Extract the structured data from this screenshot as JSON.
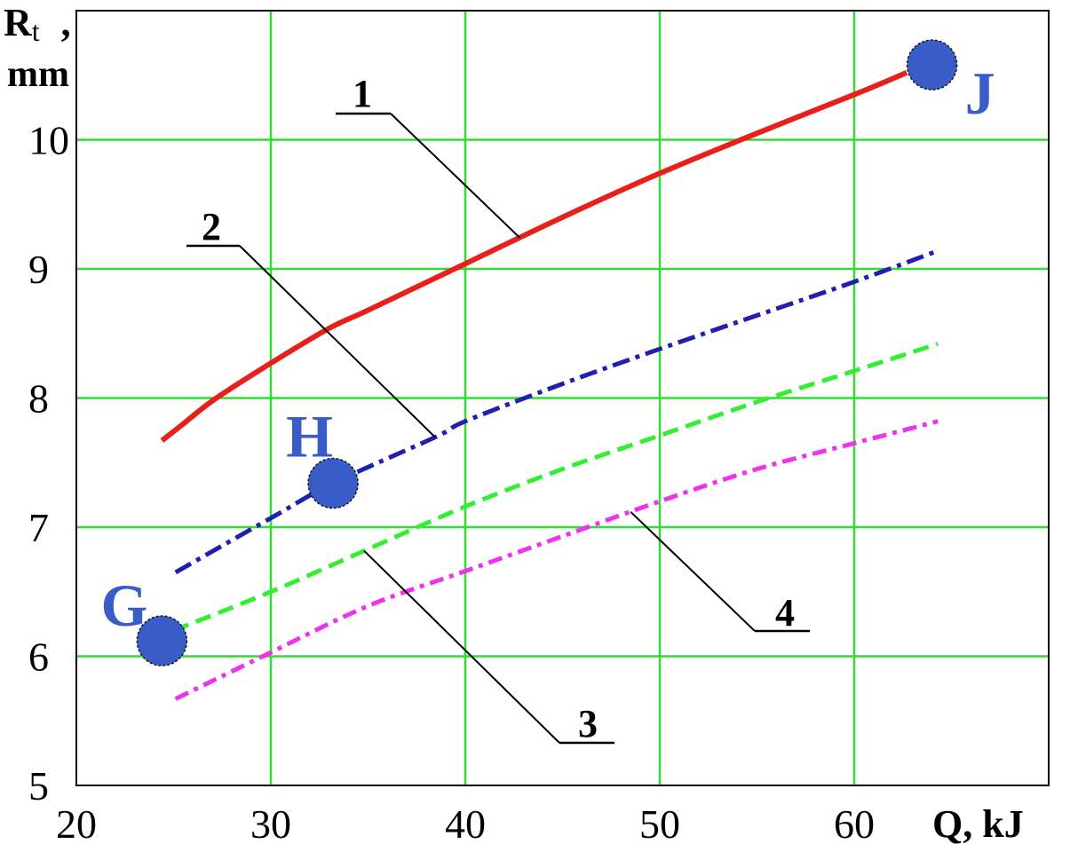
{
  "chart_data": {
    "type": "line",
    "xlabel": "Q, kJ",
    "ylabel": {
      "symbol": "R",
      "subscript": "t",
      "separator": ",",
      "unit": "mm"
    },
    "xlim": [
      20,
      70
    ],
    "ylim": [
      5,
      11
    ],
    "xticks": [
      20,
      30,
      40,
      50,
      60
    ],
    "yticks": [
      5,
      6,
      7,
      8,
      9,
      10
    ],
    "grid": true,
    "grid_color": "#35db35",
    "series": [
      {
        "name": "1",
        "color": "#e8201b",
        "x": [
          24.4,
          25.5,
          27.1,
          30,
          33,
          35,
          40,
          45,
          50,
          55,
          60,
          62.7
        ],
        "y": [
          7.67,
          7.8,
          7.99,
          8.27,
          8.54,
          8.68,
          9.04,
          9.4,
          9.74,
          10.05,
          10.35,
          10.52
        ]
      },
      {
        "name": "2",
        "color": "#1f1fb0",
        "x": [
          25.1,
          30,
          33.2,
          38.5,
          40,
          45,
          50,
          55,
          60,
          64.3
        ],
        "y": [
          6.65,
          7.07,
          7.34,
          7.7,
          7.82,
          8.11,
          8.38,
          8.64,
          8.9,
          9.14
        ]
      },
      {
        "name": "3",
        "color": "#33ee33",
        "x": [
          25,
          30,
          35,
          40,
          45,
          50,
          55,
          60,
          64.3
        ],
        "y": [
          6.2,
          6.5,
          6.83,
          7.16,
          7.45,
          7.71,
          7.97,
          8.21,
          8.42
        ]
      },
      {
        "name": "4",
        "color": "#ee33ee",
        "x": [
          25.1,
          30,
          35,
          40,
          45,
          50,
          55,
          60,
          64.3
        ],
        "y": [
          5.67,
          6.03,
          6.39,
          6.66,
          6.93,
          7.2,
          7.45,
          7.65,
          7.82
        ]
      }
    ],
    "points": [
      {
        "label": "G",
        "x": 24.4,
        "y": 6.12
      },
      {
        "label": "H",
        "x": 33.2,
        "y": 7.34
      },
      {
        "label": "J",
        "x": 64.0,
        "y": 10.58
      }
    ],
    "point_color": "#3a5cc8"
  }
}
